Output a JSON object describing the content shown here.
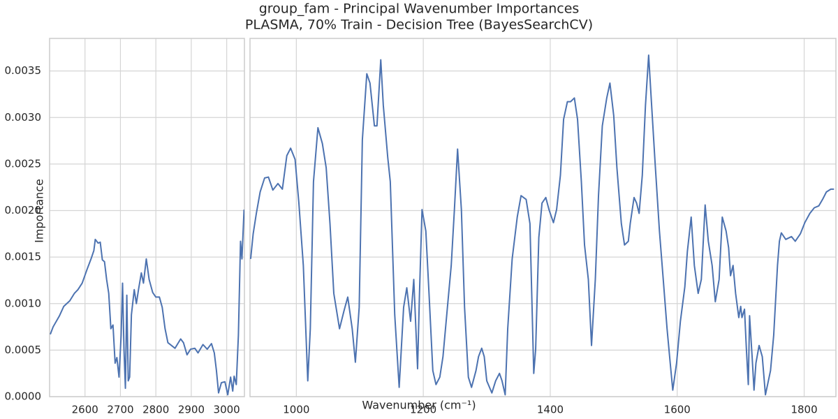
{
  "chart_data": [
    {
      "type": "line",
      "title": "group_fam - Principal Wavenumber Importances",
      "subtitle": "PLASMA, 70% Train - Decision Tree (BayesSearchCV)",
      "y_label": "Importance",
      "x_label": "Wavenumber (cm⁻¹)",
      "grid": true,
      "color": "#4c72b0",
      "xlim": [
        2500,
        3050
      ],
      "xticks": [
        2600,
        2700,
        2800,
        2900,
        3000
      ],
      "ylim": [
        0,
        0.00385
      ],
      "yticks": [
        {
          "value": 0,
          "label": "0.0000"
        },
        {
          "value": 0.0005,
          "label": "0.0005"
        },
        {
          "value": 0.001,
          "label": "0.0010"
        },
        {
          "value": 0.0015,
          "label": "0.0015"
        },
        {
          "value": 0.002,
          "label": "0.0020"
        },
        {
          "value": 0.0025,
          "label": "0.0025"
        },
        {
          "value": 0.003,
          "label": "0.0030"
        },
        {
          "value": 0.0035,
          "label": "0.0035"
        }
      ],
      "x": [
        2502,
        2510,
        2528,
        2540,
        2557,
        2570,
        2580,
        2592,
        2606,
        2617,
        2625,
        2629,
        2637,
        2643,
        2649,
        2655,
        2661,
        2667,
        2673,
        2679,
        2685,
        2690,
        2696,
        2702,
        2706,
        2710,
        2714,
        2718,
        2722,
        2726,
        2731,
        2739,
        2745,
        2751,
        2759,
        2765,
        2773,
        2781,
        2791,
        2800,
        2810,
        2818,
        2826,
        2834,
        2844,
        2854,
        2870,
        2878,
        2888,
        2898,
        2910,
        2919,
        2933,
        2945,
        2957,
        2965,
        2971,
        2977,
        2985,
        2995,
        3003,
        3011,
        3017,
        3021,
        3027,
        3033,
        3039,
        3043,
        3049
      ],
      "values": [
        0.00067,
        0.00075,
        0.00087,
        0.00097,
        0.00103,
        0.00111,
        0.00115,
        0.00122,
        0.00137,
        0.00148,
        0.00157,
        0.00169,
        0.00165,
        0.00166,
        0.00147,
        0.00145,
        0.00126,
        0.00111,
        0.00073,
        0.00077,
        0.00036,
        0.00042,
        0.00021,
        0.00066,
        0.00122,
        0.00051,
        9e-05,
        0.00109,
        0.00017,
        0.00021,
        0.00088,
        0.00115,
        0.001,
        0.00115,
        0.00133,
        0.00122,
        0.00148,
        0.00126,
        0.00112,
        0.00107,
        0.00107,
        0.00096,
        0.00073,
        0.00058,
        0.00055,
        0.00052,
        0.00062,
        0.00058,
        0.00045,
        0.00051,
        0.00052,
        0.00047,
        0.00056,
        0.00051,
        0.00057,
        0.00047,
        0.00028,
        4e-05,
        0.00015,
        0.00016,
        2e-05,
        0.00021,
        6e-05,
        0.00022,
        0.00013,
        0.00066,
        0.00167,
        0.00148,
        0.00201
      ]
    },
    {
      "type": "line",
      "grid": true,
      "color": "#4c72b0",
      "xlim": [
        927,
        1850
      ],
      "xticks": [
        1000,
        1200,
        1400,
        1600,
        1800
      ],
      "ylim": [
        0,
        0.00385
      ],
      "yticks": [
        0,
        0.0005,
        0.001,
        0.0015,
        0.002,
        0.0025,
        0.003,
        0.0035
      ],
      "x": [
        928,
        932,
        937,
        943,
        950,
        956,
        963,
        971,
        978,
        985,
        991,
        998,
        1004,
        1011,
        1018,
        1022,
        1027,
        1034,
        1041,
        1047,
        1053,
        1059,
        1068,
        1075,
        1081,
        1088,
        1093,
        1099,
        1104,
        1111,
        1116,
        1123,
        1127,
        1133,
        1137,
        1144,
        1148,
        1155,
        1162,
        1169,
        1174,
        1180,
        1185,
        1191,
        1194,
        1198,
        1204,
        1209,
        1215,
        1220,
        1226,
        1231,
        1238,
        1244,
        1249,
        1254,
        1260,
        1265,
        1271,
        1276,
        1283,
        1287,
        1292,
        1296,
        1300,
        1308,
        1314,
        1320,
        1324,
        1329,
        1333,
        1340,
        1348,
        1354,
        1362,
        1368,
        1374,
        1377,
        1382,
        1387,
        1393,
        1398,
        1405,
        1410,
        1416,
        1421,
        1427,
        1432,
        1438,
        1443,
        1449,
        1454,
        1460,
        1465,
        1471,
        1476,
        1482,
        1489,
        1494,
        1500,
        1505,
        1512,
        1517,
        1523,
        1526,
        1532,
        1536,
        1540,
        1545,
        1550,
        1555,
        1559,
        1565,
        1572,
        1578,
        1584,
        1589,
        1593,
        1599,
        1605,
        1612,
        1616,
        1622,
        1627,
        1633,
        1638,
        1644,
        1649,
        1655,
        1660,
        1666,
        1671,
        1677,
        1681,
        1684,
        1688,
        1692,
        1697,
        1700,
        1702,
        1706,
        1709,
        1712,
        1714,
        1718,
        1721,
        1724,
        1729,
        1734,
        1739,
        1747,
        1752,
        1758,
        1761,
        1764,
        1771,
        1780,
        1786,
        1794,
        1801,
        1809,
        1816,
        1823,
        1829,
        1835,
        1842,
        1847
      ],
      "values": [
        0.00148,
        0.00175,
        0.00197,
        0.0022,
        0.00235,
        0.00236,
        0.00222,
        0.00229,
        0.00223,
        0.00259,
        0.00267,
        0.00255,
        0.00208,
        0.00141,
        0.00017,
        0.00073,
        0.00231,
        0.00289,
        0.00272,
        0.00246,
        0.00186,
        0.00111,
        0.00073,
        0.00092,
        0.00107,
        0.00073,
        0.00037,
        0.00096,
        0.00276,
        0.00347,
        0.00337,
        0.00291,
        0.00291,
        0.00362,
        0.00313,
        0.00257,
        0.00231,
        0.00088,
        0.0001,
        0.00096,
        0.00117,
        0.00081,
        0.00126,
        0.0003,
        0.00111,
        0.00201,
        0.00178,
        0.00111,
        0.00028,
        0.00013,
        0.00021,
        0.00043,
        0.00096,
        0.00141,
        0.00201,
        0.00266,
        0.00201,
        0.00096,
        0.00021,
        0.0001,
        0.00028,
        0.00043,
        0.00052,
        0.00043,
        0.00017,
        4e-05,
        0.00017,
        0.00025,
        0.00017,
        2e-05,
        0.00073,
        0.00148,
        0.00193,
        0.00216,
        0.00212,
        0.00186,
        0.00025,
        0.00051,
        0.00171,
        0.00208,
        0.00214,
        0.00201,
        0.00187,
        0.00201,
        0.00238,
        0.00298,
        0.00317,
        0.00317,
        0.00321,
        0.00298,
        0.00231,
        0.00163,
        0.00126,
        0.00055,
        0.00126,
        0.00216,
        0.00291,
        0.00321,
        0.00337,
        0.00302,
        0.00246,
        0.00186,
        0.00163,
        0.00167,
        0.00186,
        0.00214,
        0.00208,
        0.00197,
        0.00238,
        0.00313,
        0.00367,
        0.00321,
        0.00253,
        0.00178,
        0.00126,
        0.00073,
        0.00036,
        7e-05,
        0.00036,
        0.00081,
        0.00118,
        0.00156,
        0.00193,
        0.00141,
        0.00111,
        0.00126,
        0.00206,
        0.00167,
        0.00141,
        0.00102,
        0.00126,
        0.00193,
        0.00178,
        0.0016,
        0.0013,
        0.00141,
        0.00111,
        0.00085,
        0.00097,
        0.00085,
        0.00094,
        0.00051,
        0.00013,
        0.00087,
        0.00043,
        7e-05,
        0.00036,
        0.00055,
        0.00043,
        2e-05,
        0.00028,
        0.00066,
        0.00141,
        0.00167,
        0.00176,
        0.00169,
        0.00172,
        0.00167,
        0.00175,
        0.00187,
        0.00197,
        0.00203,
        0.00205,
        0.00212,
        0.0022,
        0.00223,
        0.00223
      ]
    }
  ]
}
